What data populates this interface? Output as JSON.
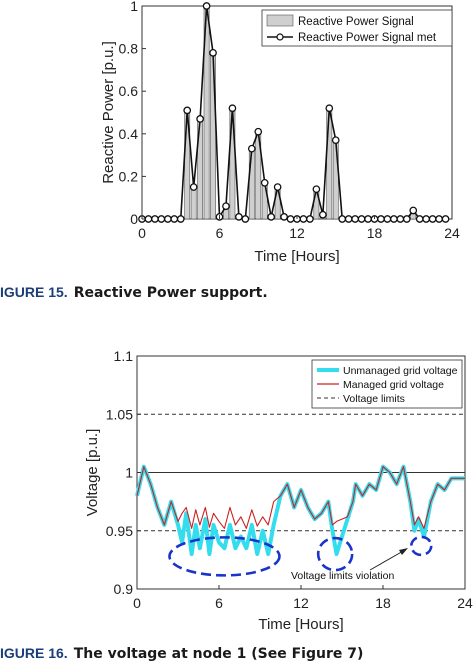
{
  "figure1": {
    "caption_label": "IGURE 15.",
    "caption_text": "Reactive Power support.",
    "chart_data": {
      "type": "bar",
      "title": "",
      "xlabel": "Time [Hours]",
      "ylabel": "Reactive Power [p.u.]",
      "xlim": [
        0,
        24
      ],
      "ylim": [
        0,
        1
      ],
      "xticks": [
        "0",
        "6",
        "12",
        "18",
        "24"
      ],
      "yticks": [
        "0",
        "0.2",
        "0.4",
        "0.6",
        "0.8",
        "1"
      ],
      "legend_position": "top-right",
      "x": [
        0,
        0.5,
        1,
        1.5,
        2,
        2.5,
        3,
        3.5,
        4,
        4.5,
        5,
        5.5,
        6,
        6.5,
        7,
        7.5,
        8,
        8.5,
        9,
        9.5,
        10,
        10.5,
        11,
        11.5,
        12,
        12.5,
        13,
        13.5,
        14,
        14.5,
        15,
        15.5,
        16,
        16.5,
        17,
        17.5,
        18,
        18.5,
        19,
        19.5,
        20,
        20.5,
        21,
        21.5,
        22,
        22.5,
        23,
        23.5
      ],
      "series": [
        {
          "name": "Reactive Power Signal",
          "style": "bar",
          "values": [
            0,
            0,
            0,
            0,
            0,
            0,
            0,
            0.51,
            0.15,
            0.47,
            1.0,
            0.78,
            0.01,
            0.06,
            0.52,
            0.01,
            0,
            0.33,
            0.41,
            0.17,
            0.01,
            0.15,
            0.01,
            0,
            0,
            0,
            0,
            0.14,
            0.02,
            0.52,
            0.37,
            0,
            0,
            0,
            0,
            0,
            0,
            0,
            0,
            0,
            0,
            0,
            0.04,
            0,
            0,
            0,
            0,
            0
          ]
        },
        {
          "name": "Reactive Power Signal met",
          "style": "line-marker",
          "values": [
            0,
            0,
            0,
            0,
            0,
            0,
            0,
            0.51,
            0.15,
            0.47,
            1.0,
            0.78,
            0.01,
            0.06,
            0.52,
            0.01,
            0,
            0.33,
            0.41,
            0.17,
            0.01,
            0.15,
            0.01,
            0,
            0,
            0,
            0,
            0.14,
            0.02,
            0.52,
            0.37,
            0,
            0,
            0,
            0,
            0,
            0,
            0,
            0,
            0,
            0,
            0,
            0.04,
            0,
            0,
            0,
            0,
            0
          ]
        }
      ]
    }
  },
  "figure2": {
    "caption_label": "IGURE 16.",
    "caption_text": "The voltage at node 1 (See Figure 7)",
    "annotation": "Voltage limits violation",
    "chart_data": {
      "type": "line",
      "title": "",
      "xlabel": "Time [Hours]",
      "ylabel": "Voltage [p.u.]",
      "xlim": [
        0,
        24
      ],
      "ylim": [
        0.9,
        1.1
      ],
      "xticks": [
        "0",
        "6",
        "12",
        "18",
        "24"
      ],
      "yticks": [
        "0.9",
        "0.95",
        "1",
        "1.05",
        "1.1"
      ],
      "legend_position": "top-right",
      "reference_lines": [
        {
          "y": 1.05,
          "style": "dashed"
        },
        {
          "y": 0.95,
          "style": "dashed"
        },
        {
          "y": 1.0,
          "style": "solid"
        }
      ],
      "series": [
        {
          "name": "Unmanaged grid voltage",
          "color": "#33ddee",
          "x": [
            0,
            0.5,
            1,
            1.5,
            2,
            2.5,
            3,
            3.3,
            3.6,
            4,
            4.3,
            4.6,
            5,
            5.3,
            5.6,
            6,
            6.4,
            6.8,
            7.2,
            7.6,
            8,
            8.4,
            8.8,
            9.2,
            9.6,
            10,
            10.5,
            11,
            11.5,
            12,
            12.5,
            13,
            13.5,
            14,
            14.3,
            14.6,
            15,
            15.4,
            15.8,
            16,
            16.5,
            17,
            17.5,
            18,
            18.5,
            19,
            19.5,
            20,
            20.3,
            20.6,
            21,
            21.5,
            22,
            22.5,
            23,
            23.5,
            24
          ],
          "values": [
            0.98,
            1.005,
            0.99,
            0.97,
            0.955,
            0.975,
            0.955,
            0.94,
            0.965,
            0.93,
            0.955,
            0.935,
            0.96,
            0.93,
            0.955,
            0.94,
            0.935,
            0.955,
            0.935,
            0.945,
            0.935,
            0.955,
            0.93,
            0.95,
            0.93,
            0.955,
            0.98,
            0.99,
            0.97,
            0.985,
            0.97,
            0.96,
            0.965,
            0.975,
            0.95,
            0.93,
            0.945,
            0.96,
            0.975,
            0.99,
            0.98,
            0.99,
            0.985,
            1.005,
            1.0,
            0.99,
            1.005,
            0.975,
            0.95,
            0.96,
            0.945,
            0.975,
            0.99,
            0.985,
            0.995,
            0.995,
            0.995
          ]
        },
        {
          "name": "Managed grid voltage",
          "color": "#cc2222",
          "x": [
            0,
            0.5,
            1,
            1.5,
            2,
            2.5,
            3,
            3.3,
            3.6,
            4,
            4.3,
            4.6,
            5,
            5.3,
            5.6,
            6,
            6.4,
            6.8,
            7.2,
            7.6,
            8,
            8.4,
            8.8,
            9.2,
            9.6,
            10,
            10.5,
            11,
            11.5,
            12,
            12.5,
            13,
            13.5,
            14,
            14.3,
            14.6,
            15,
            15.4,
            15.8,
            16,
            16.5,
            17,
            17.5,
            18,
            18.5,
            19,
            19.5,
            20,
            20.3,
            20.6,
            21,
            21.5,
            22,
            22.5,
            23,
            23.5,
            24
          ],
          "values": [
            0.98,
            1.005,
            0.99,
            0.97,
            0.955,
            0.975,
            0.958,
            0.965,
            0.97,
            0.952,
            0.968,
            0.955,
            0.97,
            0.953,
            0.965,
            0.958,
            0.952,
            0.97,
            0.955,
            0.962,
            0.952,
            0.968,
            0.954,
            0.962,
            0.955,
            0.975,
            0.98,
            0.99,
            0.97,
            0.985,
            0.97,
            0.96,
            0.965,
            0.975,
            0.955,
            0.958,
            0.96,
            0.962,
            0.975,
            0.99,
            0.98,
            0.99,
            0.985,
            1.005,
            1.0,
            0.99,
            1.005,
            0.975,
            0.955,
            0.962,
            0.952,
            0.975,
            0.99,
            0.985,
            0.995,
            0.995,
            0.995
          ]
        },
        {
          "name": "Voltage limits",
          "color": "#333333",
          "style": "dashed"
        }
      ]
    }
  }
}
